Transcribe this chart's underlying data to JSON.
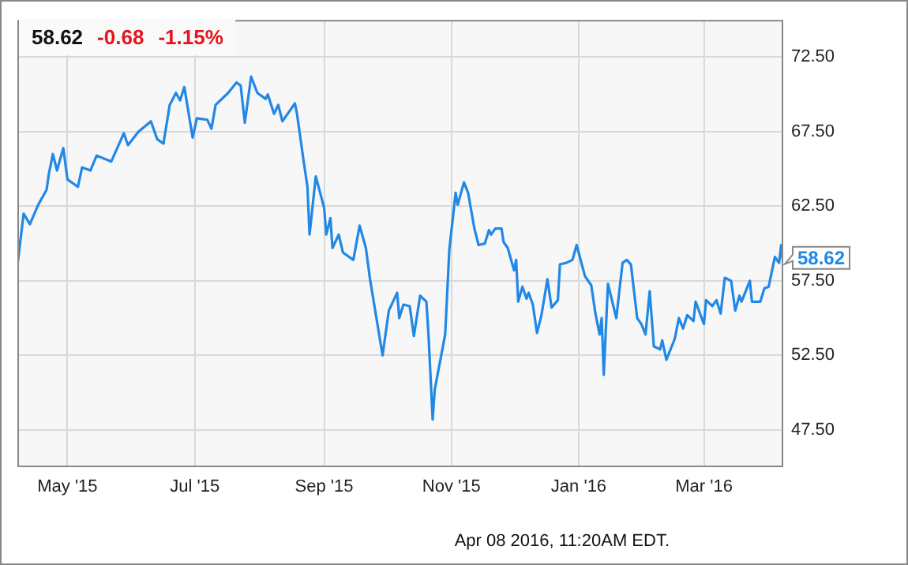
{
  "chart_data": {
    "type": "line",
    "x": [
      "2015-04-07",
      "2015-04-10",
      "2015-04-13",
      "2015-04-17",
      "2015-04-21",
      "2015-04-22",
      "2015-04-24",
      "2015-04-26",
      "2015-04-29",
      "2015-05-01",
      "2015-05-06",
      "2015-05-08",
      "2015-05-12",
      "2015-05-15",
      "2015-05-22",
      "2015-05-28",
      "2015-05-30",
      "2015-06-04",
      "2015-06-10",
      "2015-06-13",
      "2015-06-16",
      "2015-06-19",
      "2015-06-22",
      "2015-06-24",
      "2015-06-26",
      "2015-06-30",
      "2015-07-02",
      "2015-07-07",
      "2015-07-09",
      "2015-07-11",
      "2015-07-17",
      "2015-07-21",
      "2015-07-23",
      "2015-07-25",
      "2015-07-28",
      "2015-07-31",
      "2015-08-04",
      "2015-08-05",
      "2015-08-08",
      "2015-08-10",
      "2015-08-12",
      "2015-08-15",
      "2015-08-18",
      "2015-08-19",
      "2015-08-22",
      "2015-08-24",
      "2015-08-25",
      "2015-08-28",
      "2015-09-01",
      "2015-09-02",
      "2015-09-04",
      "2015-09-05",
      "2015-09-08",
      "2015-09-10",
      "2015-09-15",
      "2015-09-18",
      "2015-09-21",
      "2015-09-23",
      "2015-09-29",
      "2015-10-02",
      "2015-10-06",
      "2015-10-07",
      "2015-10-09",
      "2015-10-12",
      "2015-10-14",
      "2015-10-17",
      "2015-10-20",
      "2015-10-21",
      "2015-10-23",
      "2015-10-24",
      "2015-10-29",
      "2015-10-31",
      "2015-11-03",
      "2015-11-04",
      "2015-11-07",
      "2015-11-09",
      "2015-11-12",
      "2015-11-14",
      "2015-11-17",
      "2015-11-19",
      "2015-11-20",
      "2015-11-22",
      "2015-11-25",
      "2015-11-26",
      "2015-11-28",
      "2015-12-01",
      "2015-12-02",
      "2015-12-03",
      "2015-12-05",
      "2015-12-07",
      "2015-12-08",
      "2015-12-10",
      "2015-12-12",
      "2015-12-14",
      "2015-12-17",
      "2015-12-19",
      "2015-12-22",
      "2015-12-23",
      "2015-12-26",
      "2015-12-29",
      "2015-12-31",
      "2016-01-04",
      "2016-01-07",
      "2016-01-09",
      "2016-01-11",
      "2016-01-12",
      "2016-01-13",
      "2016-01-15",
      "2016-01-19",
      "2016-01-22",
      "2016-01-24",
      "2016-01-26",
      "2016-01-29",
      "2016-01-31",
      "2016-02-02",
      "2016-02-04",
      "2016-02-06",
      "2016-02-09",
      "2016-02-10",
      "2016-02-12",
      "2016-02-16",
      "2016-02-18",
      "2016-02-20",
      "2016-02-22",
      "2016-02-25",
      "2016-02-26",
      "2016-03-01",
      "2016-03-02",
      "2016-03-05",
      "2016-03-07",
      "2016-03-09",
      "2016-03-11",
      "2016-03-14",
      "2016-03-16",
      "2016-03-18",
      "2016-03-19",
      "2016-03-23",
      "2016-03-24",
      "2016-03-28",
      "2016-03-30",
      "2016-04-01",
      "2016-04-04",
      "2016-04-06",
      "2016-04-07",
      "2016-04-08"
    ],
    "series": [
      {
        "color": "#2188e6",
        "values": [
          58.5,
          62.0,
          61.3,
          62.6,
          63.6,
          64.6,
          66.0,
          64.9,
          66.4,
          64.3,
          63.8,
          65.1,
          64.9,
          65.9,
          65.5,
          67.4,
          66.6,
          67.5,
          68.2,
          67.0,
          66.7,
          69.3,
          70.1,
          69.6,
          70.5,
          67.1,
          68.4,
          68.3,
          67.7,
          69.3,
          70.1,
          70.8,
          70.6,
          68.1,
          71.2,
          70.1,
          69.7,
          70.0,
          68.7,
          69.3,
          68.2,
          68.8,
          69.4,
          68.7,
          65.7,
          63.8,
          60.6,
          64.5,
          62.4,
          60.6,
          61.7,
          59.7,
          60.6,
          59.4,
          58.9,
          61.2,
          59.7,
          57.6,
          52.5,
          55.5,
          56.7,
          55.0,
          55.9,
          55.8,
          53.8,
          56.5,
          56.1,
          53.9,
          48.2,
          50.2,
          53.9,
          59.6,
          63.4,
          62.6,
          64.1,
          63.4,
          61.0,
          59.9,
          60.0,
          60.9,
          60.6,
          61.0,
          61.0,
          60.1,
          59.7,
          58.2,
          58.9,
          56.1,
          57.1,
          56.3,
          56.7,
          55.9,
          54.0,
          55.1,
          57.6,
          55.7,
          56.2,
          58.6,
          58.7,
          58.9,
          59.9,
          57.8,
          57.2,
          55.3,
          53.9,
          55.0,
          51.2,
          57.3,
          55.0,
          58.7,
          58.9,
          58.6,
          55.0,
          54.6,
          53.9,
          56.8,
          53.1,
          52.9,
          53.5,
          52.2,
          53.6,
          55.0,
          54.3,
          55.2,
          54.8,
          56.1,
          54.6,
          56.2,
          55.8,
          56.2,
          55.3,
          57.7,
          57.5,
          55.5,
          56.5,
          56.1,
          57.5,
          56.1,
          56.1,
          57.0,
          57.1,
          59.1,
          58.7,
          59.9,
          58.62
        ]
      }
    ],
    "xlim": [
      "2015-04-07",
      "2016-04-08"
    ],
    "xticks": [
      {
        "value": "2015-05-01",
        "label": "May '15"
      },
      {
        "value": "2015-07-01",
        "label": "Jul '15"
      },
      {
        "value": "2015-09-01",
        "label": "Sep '15"
      },
      {
        "value": "2015-11-01",
        "label": "Nov '15"
      },
      {
        "value": "2016-01-01",
        "label": "Jan '16"
      },
      {
        "value": "2016-03-01",
        "label": "Mar '16"
      }
    ],
    "ylim": [
      45,
      75
    ],
    "yticks": [
      {
        "value": 47.5,
        "label": "47.50"
      },
      {
        "value": 52.5,
        "label": "52.50"
      },
      {
        "value": 57.5,
        "label": "57.50"
      },
      {
        "value": 62.5,
        "label": "62.50"
      },
      {
        "value": 67.5,
        "label": "67.50"
      },
      {
        "value": 72.5,
        "label": "72.50"
      }
    ],
    "grid": true,
    "marker": "none",
    "line_style": "solid",
    "legend": false,
    "annotations": [
      "58.62",
      "-0.68",
      "-1.15%",
      {
        "text": "58.62",
        "x": "2016-04-08",
        "y": 58.62
      },
      "Apr 08 2016, 11:20AM EDT."
    ]
  }
}
